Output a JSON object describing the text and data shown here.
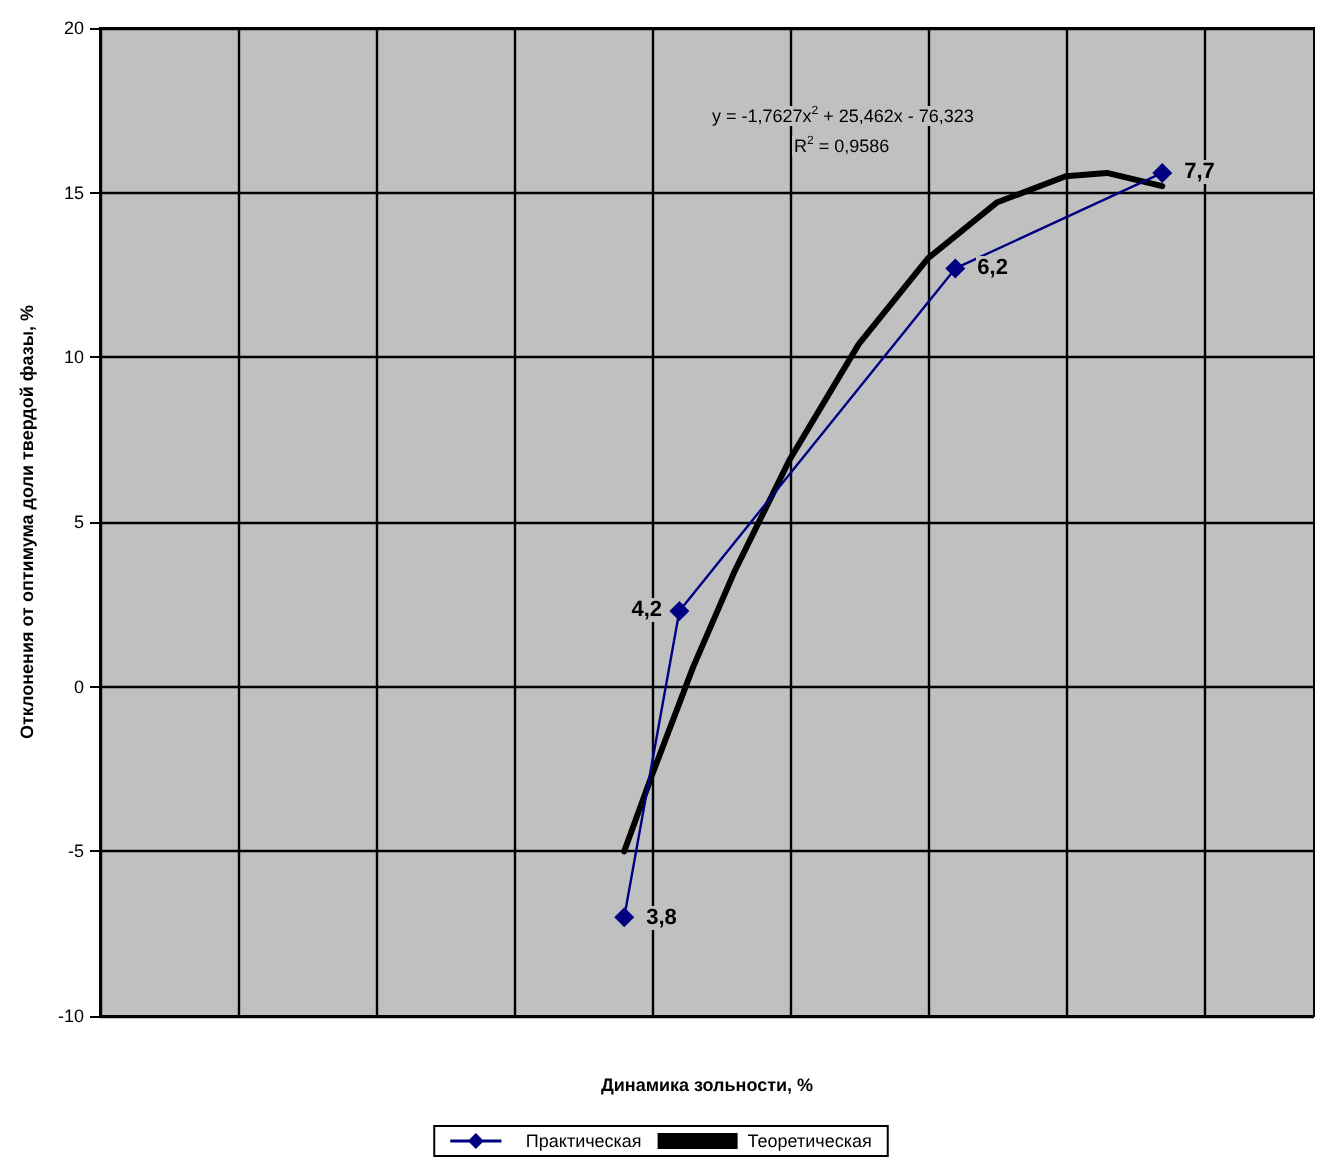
{
  "chart_data": {
    "type": "line",
    "xlabel": "Динамика зольности, %",
    "ylabel": "Отклонения от оптимума доли твердой фазы, %",
    "annotations": [
      "y = -1,7627x$^{2}$ + 25,462x - 76,323",
      "R$^{2}$ = 0,9586",
      {
        "text": "3,8",
        "y": -7.0
      },
      {
        "text": "4,2",
        "y": 2.3
      },
      {
        "text": "6,2",
        "y": 12.7
      },
      {
        "text": "7,7",
        "y": 15.6
      }
    ],
    "categories": [
      null,
      null,
      null,
      null,
      null,
      null,
      null,
      null,
      null,
      null,
      null,
      null,
      null,
      null,
      null,
      null,
      null,
      null,
      null,
      null,
      null,
      null,
      null,
      null,
      null,
      null,
      null,
      null,
      null,
      null,
      null,
      null,
      null,
      null,
      null,
      null,
      null,
      null,
      null,
      null,
      null,
      null,
      null,
      null,
      null,
      null,
      null,
      null,
      null,
      null,
      null,
      null,
      null,
      null,
      null,
      null,
      null,
      null,
      null,
      null,
      null,
      null,
      null,
      null,
      null,
      null,
      null,
      null,
      null,
      null,
      null,
      null,
      null,
      null,
      null,
      null,
      null,
      null,
      null,
      null,
      null,
      null,
      null,
      null,
      null,
      null,
      null,
      null,
      null
    ],
    "ylim": [
      -10,
      20
    ],
    "yticks": [
      -10,
      -5,
      0,
      5,
      10,
      15,
      20
    ],
    "grid": true,
    "legend": "bottom",
    "series": [
      {
        "name": "Практическая",
        "color": "#000080",
        "marker": "diamond",
        "values": [
          null,
          null,
          null,
          null,
          null,
          null,
          null,
          null,
          null,
          null,
          null,
          null,
          null,
          null,
          null,
          null,
          null,
          null,
          null,
          null,
          null,
          null,
          null,
          null,
          null,
          null,
          null,
          null,
          null,
          null,
          null,
          null,
          null,
          null,
          null,
          null,
          null,
          null,
          -7.0,
          null,
          null,
          null,
          2.3,
          null,
          null,
          null,
          null,
          null,
          null,
          null,
          null,
          null,
          null,
          null,
          null,
          null,
          null,
          null,
          null,
          null,
          null,
          null,
          12.7,
          null,
          null,
          null,
          null,
          null,
          null,
          null,
          null,
          null,
          null,
          null,
          null,
          null,
          null,
          15.6,
          null,
          null,
          null,
          null,
          null,
          null,
          null,
          null,
          null,
          null,
          null
        ]
      },
      {
        "name": "Теоретическая",
        "color": "#000000",
        "marker": "none",
        "values": [
          null,
          null,
          null,
          null,
          null,
          null,
          null,
          null,
          null,
          null,
          null,
          null,
          null,
          null,
          null,
          null,
          null,
          null,
          null,
          null,
          null,
          null,
          null,
          null,
          null,
          null,
          null,
          null,
          null,
          null,
          null,
          null,
          null,
          null,
          null,
          null,
          null,
          null,
          -5.0,
          null,
          -2.7,
          null,
          null,
          0.6,
          null,
          null,
          3.5,
          null,
          null,
          null,
          6.9,
          null,
          null,
          null,
          null,
          10.4,
          null,
          null,
          null,
          null,
          13.0,
          null,
          null,
          null,
          null,
          14.7,
          null,
          null,
          null,
          null,
          15.5,
          null,
          null,
          15.6,
          null,
          null,
          null,
          15.2,
          null,
          null,
          null,
          null,
          null,
          null,
          null,
          null,
          null,
          null,
          null
        ]
      }
    ]
  }
}
